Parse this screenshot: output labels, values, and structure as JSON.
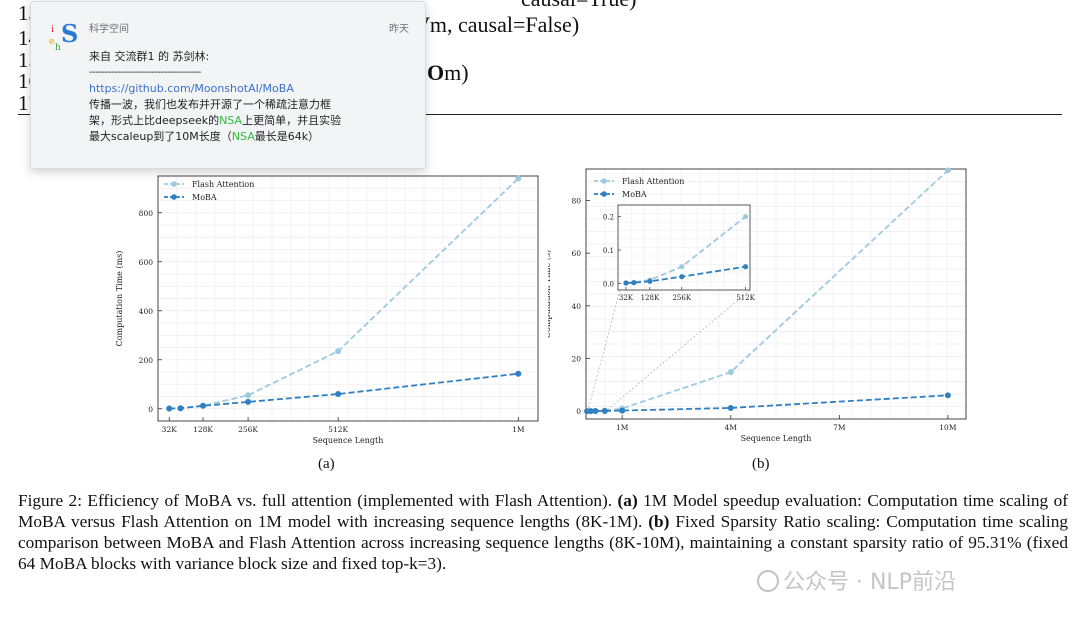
{
  "code_lines": [
    {
      "num": "13",
      "text": ""
    },
    {
      "num": "14",
      "text": ""
    },
    {
      "num": "15",
      "text": ""
    },
    {
      "num": "16",
      "text": ""
    },
    {
      "num": "17",
      "text": ""
    }
  ],
  "code_fragments": {
    "line1_right": "causal=True)",
    "line2_right": "m, causal=False)",
    "line4_right": "m)"
  },
  "notification": {
    "app_name": "科学空间",
    "time": "昨天",
    "lines": [
      {
        "text": "来自 交流群1 的 苏剑林:",
        "type": "normal"
      },
      {
        "text": "------------------------------------",
        "type": "normal"
      },
      {
        "text": "https://github.com/MoonshotAI/MoBA",
        "type": "link"
      }
    ],
    "line4": "传播一波，我们也发布并开源了一个稀疏注意力框",
    "line5_a": "架，形式上比deepseek的",
    "line5_b": "NSA",
    "line5_c": "上更简单，并且实验",
    "line6_a": "最大scaleup到了10M长度（",
    "line6_b": "NSA",
    "line6_c": "最长是64k）"
  },
  "chart_data": [
    {
      "type": "line",
      "x_positions_k": [
        32,
        64,
        128,
        256,
        512,
        1024
      ],
      "xtick_labels": [
        "32K",
        "128K",
        "256K",
        "512K",
        "1M"
      ],
      "xtick_values_k": [
        32,
        128,
        256,
        512,
        1024
      ],
      "xlim_k": [
        0,
        1080
      ],
      "ylim": [
        -50,
        950
      ],
      "yticks": [
        0,
        200,
        400,
        600,
        800
      ],
      "xlabel": "Sequence Length",
      "ylabel": "Computation Time (ms)",
      "grid": true,
      "legend": "top-left",
      "series": [
        {
          "name": "Flash Attention",
          "color": "#9ecae1",
          "x_k": [
            32,
            64,
            128,
            256,
            512,
            1024
          ],
          "values": [
            1,
            2,
            12,
            55,
            235,
            940
          ]
        },
        {
          "name": "MoBA",
          "color": "#2f7fc1",
          "x_k": [
            32,
            64,
            128,
            256,
            512,
            1024
          ],
          "values": [
            1,
            2,
            12,
            28,
            60,
            143
          ]
        }
      ],
      "subcaption": "(a)"
    },
    {
      "type": "line",
      "xtick_labels": [
        "1M",
        "4M",
        "7M",
        "10M"
      ],
      "xtick_values_m": [
        1,
        4,
        7,
        10
      ],
      "xlim_m": [
        0,
        10.5
      ],
      "ylim": [
        -3,
        92
      ],
      "yticks": [
        0,
        20,
        40,
        60,
        80
      ],
      "xlabel": "Sequence Length",
      "ylabel": "Computation Time (s)",
      "grid": true,
      "legend": "top-left",
      "series": [
        {
          "name": "Flash Attention",
          "color": "#9ecae1",
          "x_m": [
            0.03,
            0.13,
            0.26,
            0.52,
            1.0,
            4.0,
            10.0
          ],
          "values": [
            0.001,
            0.01,
            0.05,
            0.2,
            1.0,
            14.8,
            91.5
          ]
        },
        {
          "name": "MoBA",
          "color": "#2f7fc1",
          "x_m": [
            0.03,
            0.13,
            0.26,
            0.52,
            1.0,
            4.0,
            10.0
          ],
          "values": [
            0.001,
            0.007,
            0.02,
            0.05,
            0.2,
            1.2,
            6.0
          ]
        }
      ],
      "inset": {
        "xtick_labels": [
          "32K",
          "128K",
          "256K",
          "512K"
        ],
        "xtick_values_k": [
          32,
          128,
          256,
          512
        ],
        "xlim_k": [
          0,
          530
        ],
        "ylim": [
          -0.02,
          0.235
        ],
        "yticks": [
          0.0,
          0.1,
          0.2
        ],
        "ytick_labels": [
          "0.0",
          "0.1",
          "0.2"
        ],
        "series": [
          {
            "x_k": [
              32,
              64,
              128,
              256,
              512
            ],
            "values": [
              0.001,
              0.003,
              0.01,
              0.05,
              0.2
            ]
          },
          {
            "x_k": [
              32,
              64,
              128,
              256,
              512
            ],
            "values": [
              0.001,
              0.002,
              0.006,
              0.02,
              0.05
            ]
          }
        ]
      },
      "subcaption": "(b)"
    }
  ],
  "caption": {
    "prefix": "Figure 2: Efficiency of MoBA vs. full attention (implemented with Flash Attention).",
    "a_label": "(a)",
    "a_text": "1M Model speedup evaluation: Computation time scaling of MoBA versus Flash Attention on 1M model with increasing sequence lengths (8K-1M).",
    "b_label": "(b)",
    "b_text": "Fixed Sparsity Ratio scaling: Computation time scaling comparison between MoBA and Flash Attention across increasing sequence lengths (8K-10M), maintaining a constant sparsity ratio of 95.31% (fixed 64 MoBA blocks with variance block size and fixed top-k=3)."
  },
  "watermark": "公众号 · NLP前沿"
}
